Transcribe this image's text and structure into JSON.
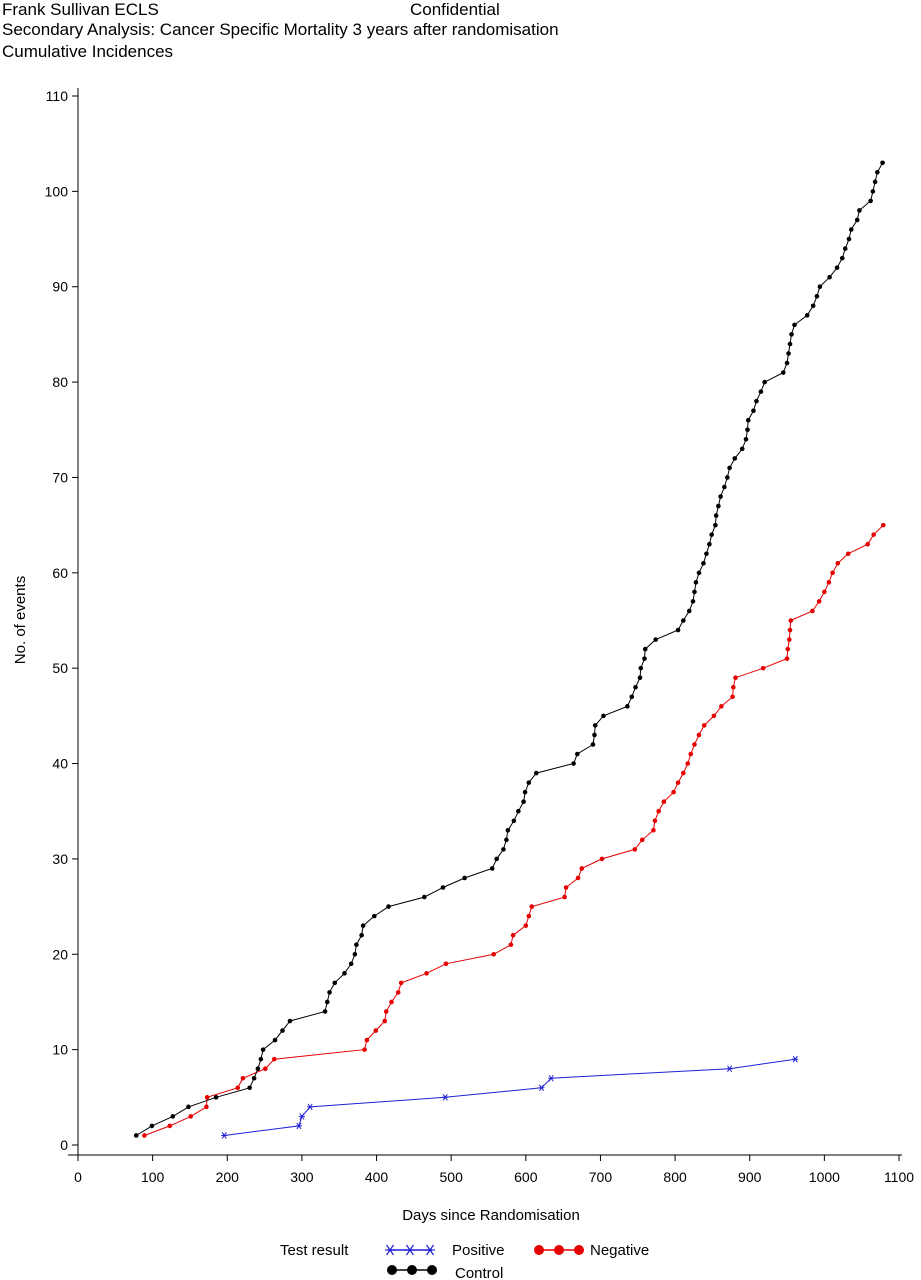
{
  "header": {
    "title": "Frank Sullivan ECLS",
    "confidential": "Confidential",
    "subtitle": "Secondary Analysis: Cancer Specific Mortality 3 years after randomisation",
    "subtitle2": "Cumulative Incidences"
  },
  "chart_data": {
    "type": "line",
    "xlabel": "Days since Randomisation",
    "ylabel": "No. of events",
    "xlim": [
      0,
      1100
    ],
    "ylim": [
      0,
      110
    ],
    "xticks": [
      0,
      100,
      200,
      300,
      400,
      500,
      600,
      700,
      800,
      900,
      1000,
      1100
    ],
    "yticks": [
      0,
      10,
      20,
      30,
      40,
      50,
      60,
      70,
      80,
      90,
      100,
      110
    ],
    "grid": false,
    "legend": {
      "title": "Test result",
      "placement": "bottom"
    },
    "series": [
      {
        "name": "Positive",
        "color": "#1f1fd6",
        "marker": "star",
        "points": [
          [
            196,
            1
          ],
          [
            296,
            2
          ],
          [
            300,
            3
          ],
          [
            311,
            4
          ],
          [
            492,
            5
          ],
          [
            621,
            6
          ],
          [
            634,
            7
          ],
          [
            873,
            8
          ],
          [
            961,
            9
          ]
        ]
      },
      {
        "name": "Negative",
        "color": "#e60000",
        "marker": "dot",
        "points": [
          [
            89,
            1
          ],
          [
            123,
            2
          ],
          [
            151,
            3
          ],
          [
            172,
            4
          ],
          [
            173,
            5
          ],
          [
            214,
            6
          ],
          [
            221,
            7
          ],
          [
            251,
            8
          ],
          [
            263,
            9
          ],
          [
            384,
            10
          ],
          [
            387,
            11
          ],
          [
            399,
            12
          ],
          [
            411,
            13
          ],
          [
            413,
            14
          ],
          [
            420,
            15
          ],
          [
            429,
            16
          ],
          [
            433,
            17
          ],
          [
            467,
            18
          ],
          [
            493,
            19
          ],
          [
            557,
            20
          ],
          [
            580,
            21
          ],
          [
            583,
            22
          ],
          [
            600,
            23
          ],
          [
            604,
            24
          ],
          [
            608,
            25
          ],
          [
            652,
            26
          ],
          [
            654,
            27
          ],
          [
            670,
            28
          ],
          [
            675,
            29
          ],
          [
            702,
            30
          ],
          [
            746,
            31
          ],
          [
            756,
            32
          ],
          [
            771,
            33
          ],
          [
            773,
            34
          ],
          [
            778,
            35
          ],
          [
            785,
            36
          ],
          [
            798,
            37
          ],
          [
            804,
            38
          ],
          [
            811,
            39
          ],
          [
            817,
            40
          ],
          [
            821,
            41
          ],
          [
            826,
            42
          ],
          [
            832,
            43
          ],
          [
            839,
            44
          ],
          [
            852,
            45
          ],
          [
            862,
            46
          ],
          [
            877,
            47
          ],
          [
            878,
            48
          ],
          [
            881,
            49
          ],
          [
            918,
            50
          ],
          [
            950,
            51
          ],
          [
            951,
            52
          ],
          [
            953,
            53
          ],
          [
            954,
            54
          ],
          [
            955,
            55
          ],
          [
            984,
            56
          ],
          [
            993,
            57
          ],
          [
            1000,
            58
          ],
          [
            1006,
            59
          ],
          [
            1011,
            60
          ],
          [
            1018,
            61
          ],
          [
            1032,
            62
          ],
          [
            1058,
            63
          ],
          [
            1066,
            64
          ],
          [
            1079,
            65
          ]
        ]
      },
      {
        "name": "Control",
        "color": "#000000",
        "marker": "dot",
        "points": [
          [
            78,
            1
          ],
          [
            99,
            2
          ],
          [
            127,
            3
          ],
          [
            148,
            4
          ],
          [
            185,
            5
          ],
          [
            230,
            6
          ],
          [
            236,
            7
          ],
          [
            241,
            8
          ],
          [
            245,
            9
          ],
          [
            248,
            10
          ],
          [
            264,
            11
          ],
          [
            274,
            12
          ],
          [
            284,
            13
          ],
          [
            331,
            14
          ],
          [
            334,
            15
          ],
          [
            337,
            16
          ],
          [
            344,
            17
          ],
          [
            357,
            18
          ],
          [
            366,
            19
          ],
          [
            371,
            20
          ],
          [
            373,
            21
          ],
          [
            380,
            22
          ],
          [
            382,
            23
          ],
          [
            397,
            24
          ],
          [
            416,
            25
          ],
          [
            464,
            26
          ],
          [
            489,
            27
          ],
          [
            518,
            28
          ],
          [
            555,
            29
          ],
          [
            561,
            30
          ],
          [
            570,
            31
          ],
          [
            574,
            32
          ],
          [
            576,
            33
          ],
          [
            584,
            34
          ],
          [
            590,
            35
          ],
          [
            597,
            36
          ],
          [
            599,
            37
          ],
          [
            604,
            38
          ],
          [
            614,
            39
          ],
          [
            664,
            40
          ],
          [
            669,
            41
          ],
          [
            690,
            42
          ],
          [
            692,
            43
          ],
          [
            693,
            44
          ],
          [
            704,
            45
          ],
          [
            736,
            46
          ],
          [
            742,
            47
          ],
          [
            747,
            48
          ],
          [
            753,
            49
          ],
          [
            754,
            50
          ],
          [
            759,
            51
          ],
          [
            760,
            52
          ],
          [
            774,
            53
          ],
          [
            804,
            54
          ],
          [
            811,
            55
          ],
          [
            819,
            56
          ],
          [
            824,
            57
          ],
          [
            826,
            58
          ],
          [
            828,
            59
          ],
          [
            832,
            60
          ],
          [
            838,
            61
          ],
          [
            842,
            62
          ],
          [
            846,
            63
          ],
          [
            849,
            64
          ],
          [
            854,
            65
          ],
          [
            855,
            66
          ],
          [
            858,
            67
          ],
          [
            861,
            68
          ],
          [
            866,
            69
          ],
          [
            870,
            70
          ],
          [
            873,
            71
          ],
          [
            880,
            72
          ],
          [
            890,
            73
          ],
          [
            895,
            74
          ],
          [
            897,
            75
          ],
          [
            898,
            76
          ],
          [
            905,
            77
          ],
          [
            909,
            78
          ],
          [
            915,
            79
          ],
          [
            920,
            80
          ],
          [
            945,
            81
          ],
          [
            950,
            82
          ],
          [
            952,
            83
          ],
          [
            954,
            84
          ],
          [
            956,
            85
          ],
          [
            960,
            86
          ],
          [
            977,
            87
          ],
          [
            985,
            88
          ],
          [
            990,
            89
          ],
          [
            994,
            90
          ],
          [
            1007,
            91
          ],
          [
            1017,
            92
          ],
          [
            1024,
            93
          ],
          [
            1028,
            94
          ],
          [
            1033,
            95
          ],
          [
            1036,
            96
          ],
          [
            1044,
            97
          ],
          [
            1047,
            98
          ],
          [
            1062,
            99
          ],
          [
            1065,
            100
          ],
          [
            1068,
            101
          ],
          [
            1071,
            102
          ],
          [
            1078,
            103
          ]
        ]
      }
    ]
  }
}
